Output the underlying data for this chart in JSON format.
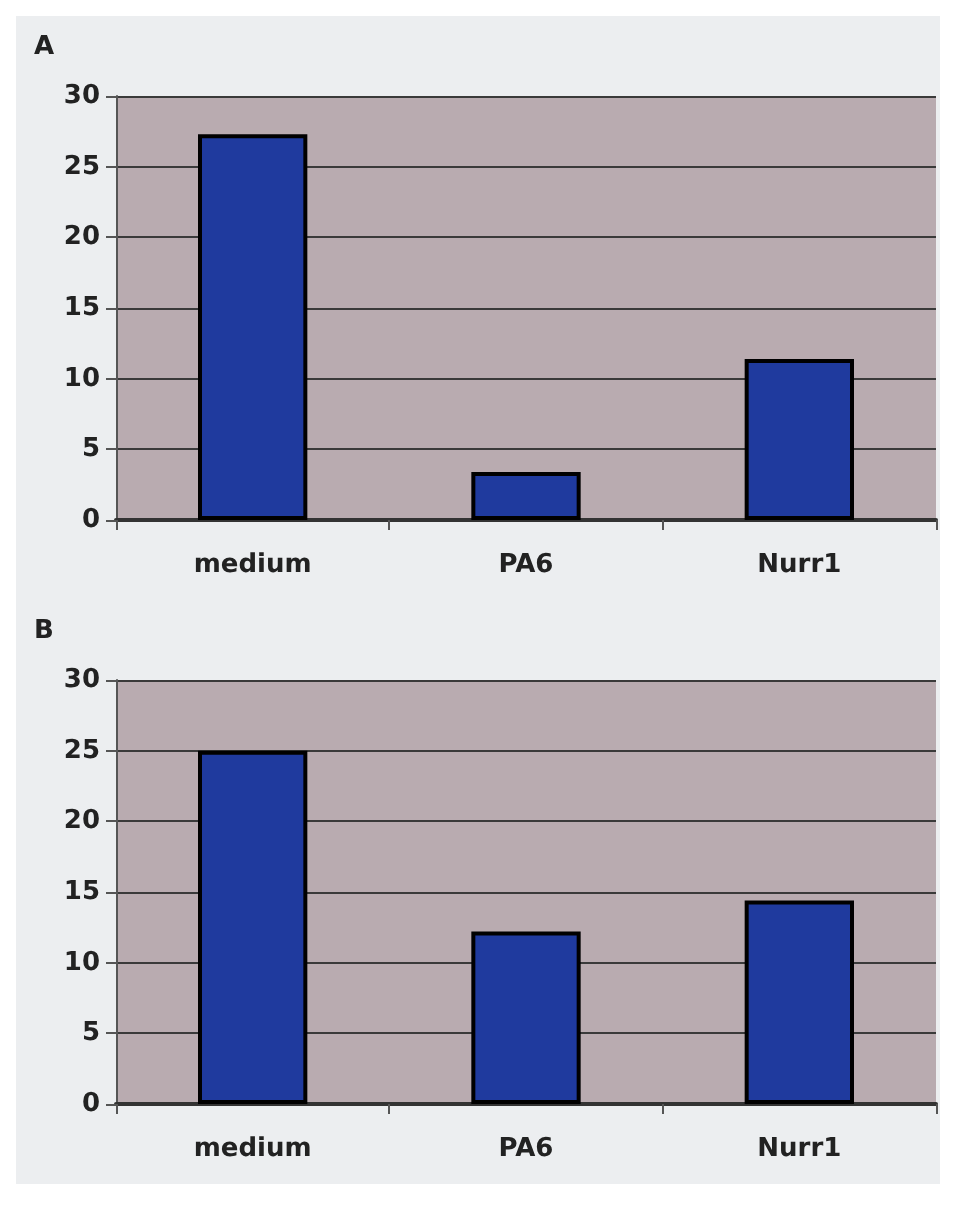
{
  "chart_data": [
    {
      "type": "bar",
      "title": "A",
      "categories": [
        "medium",
        "PA6",
        "Nurr1"
      ],
      "values": [
        27.3,
        3.4,
        11.4
      ],
      "color": "#1f3a9e",
      "ylim": [
        0,
        30
      ],
      "yticks": [
        0,
        5,
        10,
        15,
        20,
        25,
        30
      ],
      "grid": "y"
    },
    {
      "type": "bar",
      "title": "B",
      "categories": [
        "medium",
        "PA6",
        "Nurr1"
      ],
      "values": [
        25.0,
        12.2,
        14.4
      ],
      "color": "#1f3a9e",
      "ylim": [
        0,
        30
      ],
      "yticks": [
        0,
        5,
        10,
        15,
        20,
        25,
        30
      ],
      "grid": "y"
    }
  ]
}
